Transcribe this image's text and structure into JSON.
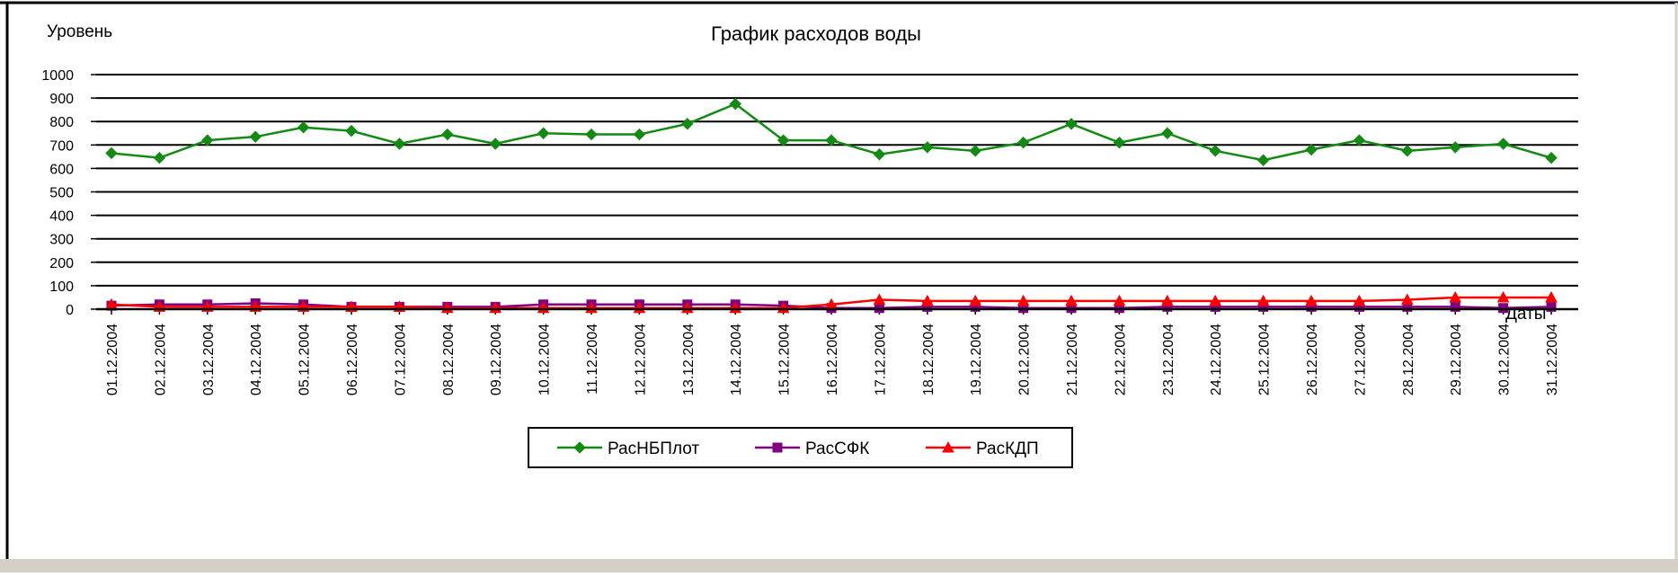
{
  "chart_data": {
    "type": "line",
    "title": "График расходов воды",
    "y_label": "Уровень",
    "x_label": "Даты",
    "categories": [
      "01.12.2004",
      "02.12.2004",
      "03.12.2004",
      "04.12.2004",
      "05.12.2004",
      "06.12.2004",
      "07.12.2004",
      "08.12.2004",
      "09.12.2004",
      "10.12.2004",
      "11.12.2004",
      "12.12.2004",
      "13.12.2004",
      "14.12.2004",
      "15.12.2004",
      "16.12.2004",
      "17.12.2004",
      "18.12.2004",
      "19.12.2004",
      "20.12.2004",
      "21.12.2004",
      "22.12.2004",
      "23.12.2004",
      "24.12.2004",
      "25.12.2004",
      "26.12.2004",
      "27.12.2004",
      "28.12.2004",
      "29.12.2004",
      "30.12.2004",
      "31.12.2004"
    ],
    "series": [
      {
        "name": "РасНБПлот",
        "color": "#138a13",
        "marker": "diamond",
        "values": [
          665,
          645,
          720,
          735,
          775,
          760,
          705,
          745,
          705,
          750,
          745,
          745,
          790,
          875,
          720,
          720,
          660,
          690,
          675,
          710,
          790,
          710,
          750,
          675,
          635,
          680,
          720,
          675,
          690,
          705,
          645
        ]
      },
      {
        "name": "РасСФК",
        "color": "#800080",
        "marker": "square",
        "values": [
          15,
          20,
          20,
          25,
          20,
          10,
          10,
          10,
          10,
          20,
          20,
          20,
          20,
          20,
          15,
          5,
          5,
          10,
          10,
          5,
          5,
          5,
          10,
          10,
          10,
          10,
          10,
          10,
          10,
          5,
          10
        ]
      },
      {
        "name": "РасКДП",
        "color": "#ff0000",
        "marker": "triangle",
        "values": [
          20,
          10,
          10,
          10,
          10,
          10,
          10,
          5,
          5,
          5,
          5,
          5,
          5,
          5,
          5,
          20,
          40,
          35,
          35,
          35,
          35,
          35,
          35,
          35,
          35,
          35,
          35,
          40,
          50,
          50,
          50
        ]
      }
    ],
    "ylim": [
      0,
      1000
    ],
    "yticks": [
      0,
      100,
      200,
      300,
      400,
      500,
      600,
      700,
      800,
      900,
      1000
    ],
    "grid": true
  }
}
